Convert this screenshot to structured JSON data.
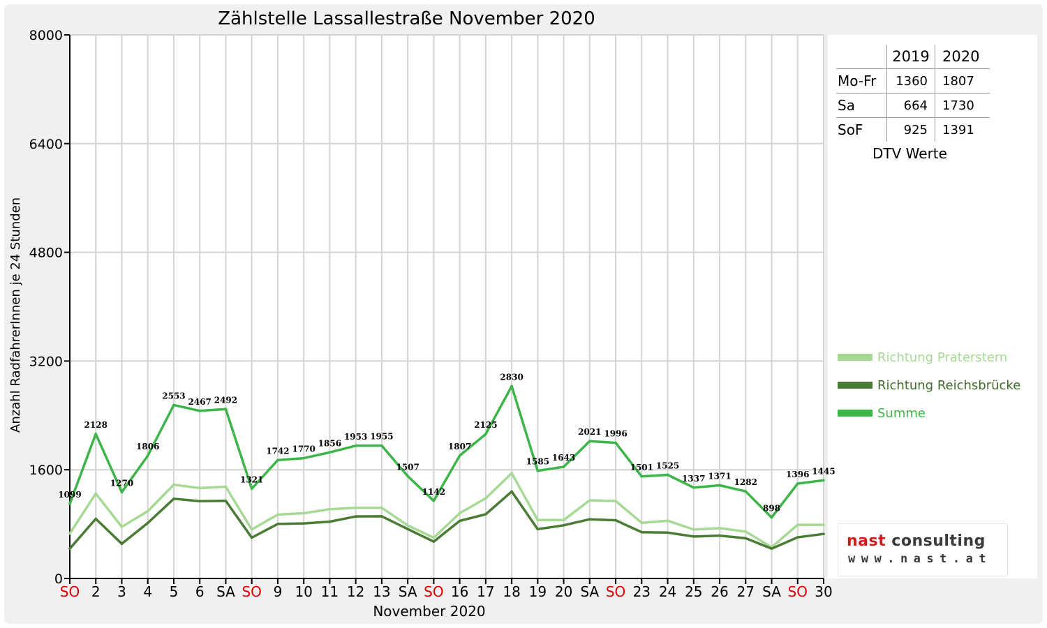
{
  "chart_data": {
    "type": "line",
    "title": "Zählstelle Lassallestraße November 2020",
    "xlabel": "November 2020",
    "ylabel": "Anzahl RadfahrerInnen je 24 Stunden",
    "ylim": [
      0,
      8000
    ],
    "yticks": [
      0,
      1600,
      3200,
      4800,
      6400,
      8000
    ],
    "grid": true,
    "legend_position": "right",
    "categories": [
      "SO",
      "2",
      "3",
      "4",
      "5",
      "6",
      "SA",
      "SO",
      "9",
      "10",
      "11",
      "12",
      "13",
      "SA",
      "SO",
      "16",
      "17",
      "18",
      "19",
      "20",
      "SA",
      "SO",
      "23",
      "24",
      "25",
      "26",
      "27",
      "SA",
      "SO",
      "30"
    ],
    "highlight_categories": [
      "SO"
    ],
    "highlight_color": "#e00000",
    "series": [
      {
        "name": "Richtung Praterstern",
        "color": "#a6d994",
        "values": [
          660,
          1250,
          760,
          990,
          1380,
          1330,
          1350,
          720,
          940,
          960,
          1020,
          1040,
          1040,
          780,
          600,
          960,
          1180,
          1550,
          860,
          860,
          1150,
          1140,
          820,
          850,
          720,
          740,
          690,
          460,
          790,
          790
        ]
      },
      {
        "name": "Richtung Reichsbrücke",
        "color": "#4a7c35",
        "values": [
          439,
          878,
          510,
          816,
          1173,
          1137,
          1142,
          601,
          802,
          810,
          836,
          913,
          915,
          727,
          542,
          847,
          945,
          1280,
          725,
          783,
          871,
          856,
          681,
          675,
          617,
          631,
          592,
          438,
          606,
          655
        ]
      },
      {
        "name": "Summe",
        "color": "#3db54a",
        "values": [
          1099,
          2128,
          1270,
          1806,
          2553,
          2467,
          2492,
          1321,
          1742,
          1770,
          1856,
          1953,
          1955,
          1507,
          1142,
          1807,
          2125,
          2830,
          1585,
          1643,
          2021,
          1996,
          1501,
          1525,
          1337,
          1371,
          1282,
          898,
          1396,
          1445
        ],
        "labels": [
          "1099",
          "2128",
          "1270",
          "1806",
          "2553",
          "2467",
          "2492",
          "1321",
          "1742",
          "1770",
          "1856",
          "1953",
          "1955",
          "1507",
          "1142",
          "1807",
          "2125",
          "2830",
          "1585",
          "1643",
          "2021",
          "1996",
          "1501",
          "1525",
          "1337",
          "1371",
          "1282",
          "898",
          "1396",
          "1445"
        ]
      }
    ]
  },
  "dtv_table": {
    "headers": [
      "",
      "2019",
      "2020"
    ],
    "rows": [
      {
        "label": "Mo-Fr",
        "v2019": "1360",
        "v2020": "1807"
      },
      {
        "label": "Sa",
        "v2019": "664",
        "v2020": "1730"
      },
      {
        "label": "SoF",
        "v2019": "925",
        "v2020": "1391"
      }
    ],
    "caption": "DTV Werte"
  },
  "logo": {
    "part1": "nast",
    "part2": " consulting",
    "url": "www.nast.at"
  }
}
